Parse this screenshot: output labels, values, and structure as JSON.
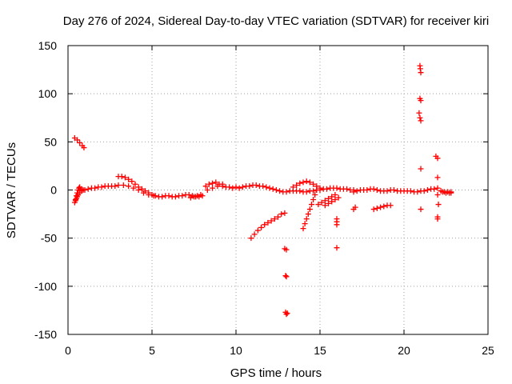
{
  "chart_data": {
    "type": "scatter",
    "title": "Day 276 of 2024, Sidereal Day-to-day VTEC variation (SDTVAR) for receiver kiri",
    "xlabel": "GPS time / hours",
    "ylabel": "SDTVAR / TECUs",
    "xlim": [
      0,
      25
    ],
    "ylim": [
      -150,
      150
    ],
    "xticks": [
      0,
      5,
      10,
      15,
      20,
      25
    ],
    "xtick_labels": [
      "0",
      "5",
      "10",
      "15",
      "20",
      "25"
    ],
    "yticks": [
      -150,
      -100,
      -50,
      0,
      50,
      100,
      150
    ],
    "ytick_labels": [
      "-150",
      "-100",
      "-50",
      "0",
      "50",
      "100",
      "150"
    ],
    "grid": true,
    "marker": "+",
    "color": "#ff0000",
    "series": [
      {
        "name": "SDTVAR",
        "x": [
          0.4,
          0.55,
          0.7,
          0.85,
          0.95,
          0.4,
          0.45,
          0.5,
          0.55,
          0.6,
          0.65,
          0.7,
          0.8,
          0.9,
          1.0,
          1.2,
          1.4,
          1.6,
          1.8,
          2.0,
          2.2,
          2.4,
          2.6,
          2.8,
          0.45,
          0.5,
          0.55,
          0.6,
          0.7,
          0.8,
          3.0,
          3.2,
          3.4,
          3.6,
          3.8,
          4.0,
          4.2,
          4.4,
          4.6,
          4.8,
          5.0,
          3.0,
          3.3,
          3.6,
          3.9,
          4.2,
          4.5,
          4.8,
          5.1,
          5.2,
          5.4,
          5.6,
          5.8,
          6.0,
          6.2,
          6.4,
          6.6,
          6.8,
          7.0,
          7.2,
          7.4,
          7.6,
          7.8,
          8.0,
          7.3,
          7.5,
          7.7,
          7.9,
          8.2,
          8.4,
          8.6,
          8.8,
          9.0,
          9.2,
          9.4,
          9.6,
          9.8,
          10.0,
          8.3,
          8.6,
          8.9,
          9.2,
          10.2,
          10.4,
          10.6,
          10.8,
          11.0,
          11.2,
          11.4,
          11.6,
          11.8,
          12.0,
          12.2,
          12.4,
          12.6,
          12.8,
          13.0,
          13.2,
          13.4,
          13.6,
          13.8,
          14.0,
          14.2,
          14.4,
          14.6,
          14.8,
          15.0,
          10.9,
          11.1,
          11.3,
          11.5,
          11.7,
          11.9,
          12.1,
          12.3,
          12.5,
          12.7,
          12.9,
          12.95,
          13.0,
          13.05,
          12.95,
          13.0,
          12.9,
          13.0,
          13.4,
          13.6,
          13.8,
          14.0,
          14.2,
          14.4,
          14.6,
          14.8,
          15.0,
          15.2,
          15.4,
          15.6,
          15.8,
          16.0,
          16.2,
          16.4,
          16.6,
          16.8,
          17.0,
          14.0,
          14.1,
          14.2,
          14.3,
          14.4,
          14.5,
          14.6,
          14.7,
          14.8,
          14.9,
          15.1,
          15.3,
          15.5,
          15.7,
          15.9,
          15.3,
          15.5,
          15.7,
          15.9,
          16.1,
          16.0,
          16.0,
          16.0,
          16.0,
          17.0,
          17.2,
          17.4,
          17.6,
          17.8,
          18.0,
          18.2,
          18.4,
          18.6,
          18.8,
          19.0,
          19.2,
          19.4,
          19.6,
          19.8,
          20.0,
          17.0,
          17.1,
          18.2,
          18.4,
          18.6,
          18.8,
          19.0,
          19.2,
          20.2,
          20.4,
          20.6,
          20.8,
          21.0,
          21.2,
          21.4,
          21.6,
          21.8,
          22.0,
          22.2,
          22.4,
          22.6,
          22.8,
          20.95,
          20.97,
          21.0,
          20.95,
          21.0,
          20.9,
          20.95,
          21.0,
          21.0,
          21.0,
          21.9,
          22.0,
          22.0,
          22.0,
          22.05,
          22.0,
          22.0,
          22.3,
          22.5,
          22.7,
          22.8
        ],
        "y": [
          54,
          52,
          49,
          46,
          44,
          -13,
          -10,
          -6,
          -3,
          0,
          2,
          3,
          1,
          0,
          0,
          1,
          2,
          2,
          3,
          3,
          4,
          4,
          4,
          4,
          -11,
          -9,
          -7,
          -5,
          -3,
          -1,
          14,
          14,
          13,
          11,
          9,
          6,
          3,
          1,
          -1,
          -3,
          -5,
          5,
          5,
          4,
          2,
          0,
          -3,
          -5,
          -6,
          -6,
          -7,
          -7,
          -6,
          -6,
          -7,
          -7,
          -6,
          -6,
          -5,
          -5,
          -6,
          -7,
          -7,
          -6,
          -8,
          -7,
          -6,
          -5,
          4,
          6,
          7,
          8,
          6,
          4,
          3,
          3,
          2,
          3,
          0,
          2,
          4,
          6,
          2,
          3,
          4,
          4,
          5,
          5,
          4,
          4,
          3,
          2,
          1,
          0,
          -1,
          -2,
          -2,
          -1,
          -1,
          -1,
          -1,
          -2,
          -2,
          -1,
          -1,
          0,
          0,
          -50,
          -46,
          -42,
          -39,
          -36,
          -34,
          -32,
          -30,
          -28,
          -25,
          -24,
          -127,
          -129,
          -128,
          -89,
          -90,
          -61,
          -62,
          3,
          5,
          7,
          8,
          9,
          8,
          6,
          4,
          2,
          1,
          1,
          2,
          2,
          2,
          1,
          1,
          1,
          0,
          0,
          -40,
          -35,
          -30,
          -25,
          -20,
          -15,
          -10,
          -5,
          0,
          -15,
          -13,
          -11,
          -9,
          -7,
          -5,
          -16,
          -14,
          -12,
          -10,
          -8,
          -30,
          -33,
          -36,
          -60,
          -2,
          -1,
          0,
          0,
          0,
          1,
          1,
          0,
          -1,
          -1,
          -1,
          0,
          0,
          -1,
          -1,
          -1,
          -20,
          -18,
          -20,
          -19,
          -18,
          -17,
          -16,
          -16,
          -1,
          -1,
          -2,
          -2,
          -1,
          -1,
          0,
          1,
          1,
          2,
          -1,
          -2,
          -2,
          -3,
          129,
          126,
          122,
          95,
          93,
          80,
          75,
          72,
          22,
          -20,
          35,
          33,
          13,
          -5,
          -15,
          -28,
          -30,
          -2,
          -3,
          -3,
          -2
        ]
      }
    ]
  }
}
